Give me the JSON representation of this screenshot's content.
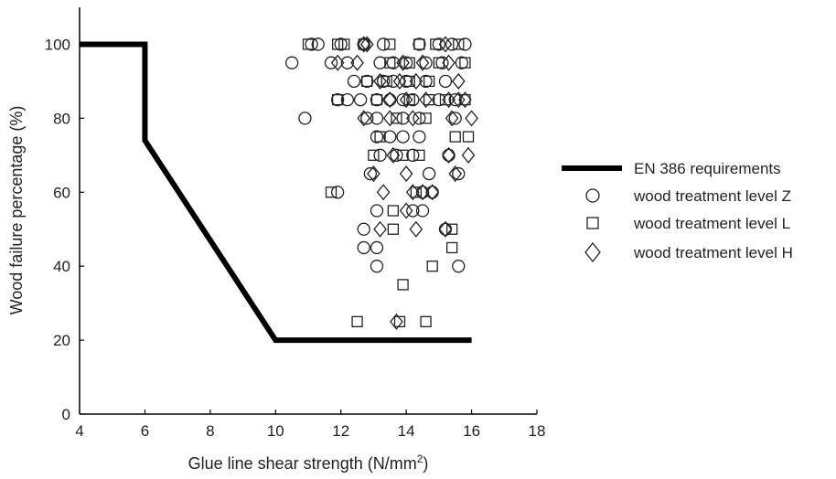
{
  "chart_data": {
    "type": "scatter",
    "xlabel": "Glue line shear strength (N/mm",
    "xlabel_sup": "2",
    "xlabel_end": ")",
    "ylabel": "Wood failure percentage (%)",
    "xlim": [
      4,
      18
    ],
    "ylim": [
      0,
      110
    ],
    "xticks": [
      4,
      6,
      8,
      10,
      12,
      14,
      16,
      18
    ],
    "yticks": [
      0,
      20,
      40,
      60,
      80,
      100
    ],
    "grid": false,
    "legend_position": "right",
    "requirement_line": {
      "name": "EN 386 requirements",
      "color": "#000000",
      "points": [
        [
          4,
          100
        ],
        [
          6,
          100
        ],
        [
          6,
          74
        ],
        [
          10,
          20
        ],
        [
          16,
          20
        ]
      ]
    },
    "series": [
      {
        "name": "wood treatment level Z",
        "marker": "circle",
        "color": "#222222",
        "points": [
          [
            11.1,
            100
          ],
          [
            11.3,
            100
          ],
          [
            12.0,
            100
          ],
          [
            12.7,
            100
          ],
          [
            13.3,
            100
          ],
          [
            14.4,
            100
          ],
          [
            15.0,
            100
          ],
          [
            15.4,
            100
          ],
          [
            15.8,
            100
          ],
          [
            10.5,
            95
          ],
          [
            11.7,
            95
          ],
          [
            12.2,
            95
          ],
          [
            13.2,
            95
          ],
          [
            13.6,
            95
          ],
          [
            14.0,
            95
          ],
          [
            14.6,
            95
          ],
          [
            15.1,
            95
          ],
          [
            15.7,
            95
          ],
          [
            12.4,
            90
          ],
          [
            12.8,
            90
          ],
          [
            13.3,
            90
          ],
          [
            13.6,
            90
          ],
          [
            14.0,
            90
          ],
          [
            14.6,
            90
          ],
          [
            15.2,
            90
          ],
          [
            11.9,
            85
          ],
          [
            12.2,
            85
          ],
          [
            12.6,
            85
          ],
          [
            13.1,
            85
          ],
          [
            13.5,
            85
          ],
          [
            13.9,
            85
          ],
          [
            14.2,
            85
          ],
          [
            15.0,
            85
          ],
          [
            15.5,
            85
          ],
          [
            10.9,
            80
          ],
          [
            12.8,
            80
          ],
          [
            13.1,
            80
          ],
          [
            13.9,
            80
          ],
          [
            14.4,
            80
          ],
          [
            15.5,
            80
          ],
          [
            13.1,
            75
          ],
          [
            13.5,
            75
          ],
          [
            13.9,
            75
          ],
          [
            14.4,
            75
          ],
          [
            13.2,
            70
          ],
          [
            13.7,
            70
          ],
          [
            14.2,
            70
          ],
          [
            15.3,
            70
          ],
          [
            12.9,
            65
          ],
          [
            14.7,
            65
          ],
          [
            15.6,
            65
          ],
          [
            11.9,
            60
          ],
          [
            14.5,
            60
          ],
          [
            14.8,
            60
          ],
          [
            13.1,
            55
          ],
          [
            14.2,
            55
          ],
          [
            14.5,
            55
          ],
          [
            12.7,
            50
          ],
          [
            15.2,
            50
          ],
          [
            12.7,
            45
          ],
          [
            13.1,
            45
          ],
          [
            13.1,
            40
          ],
          [
            15.6,
            40
          ]
        ]
      },
      {
        "name": "wood treatment level L",
        "marker": "square",
        "color": "#222222",
        "points": [
          [
            11.0,
            100
          ],
          [
            11.9,
            100
          ],
          [
            12.1,
            100
          ],
          [
            12.7,
            100
          ],
          [
            13.5,
            100
          ],
          [
            14.4,
            100
          ],
          [
            14.9,
            100
          ],
          [
            15.6,
            100
          ],
          [
            13.5,
            95
          ],
          [
            14.1,
            95
          ],
          [
            15.0,
            95
          ],
          [
            15.8,
            95
          ],
          [
            12.8,
            90
          ],
          [
            13.4,
            90
          ],
          [
            14.1,
            90
          ],
          [
            14.7,
            90
          ],
          [
            11.9,
            85
          ],
          [
            13.1,
            85
          ],
          [
            14.1,
            85
          ],
          [
            14.7,
            85
          ],
          [
            15.2,
            85
          ],
          [
            15.8,
            85
          ],
          [
            13.7,
            80
          ],
          [
            14.6,
            80
          ],
          [
            13.2,
            75
          ],
          [
            15.5,
            75
          ],
          [
            15.9,
            75
          ],
          [
            13.0,
            70
          ],
          [
            13.9,
            70
          ],
          [
            14.4,
            70
          ],
          [
            11.7,
            60
          ],
          [
            14.3,
            60
          ],
          [
            13.6,
            55
          ],
          [
            15.4,
            50
          ],
          [
            13.6,
            50
          ],
          [
            15.4,
            45
          ],
          [
            14.8,
            40
          ],
          [
            13.9,
            35
          ],
          [
            12.5,
            25
          ],
          [
            13.8,
            25
          ],
          [
            14.6,
            25
          ]
        ]
      },
      {
        "name": "wood treatment level H",
        "marker": "diamond",
        "color": "#222222",
        "points": [
          [
            12.7,
            100
          ],
          [
            12.8,
            100
          ],
          [
            15.2,
            100
          ],
          [
            11.9,
            95
          ],
          [
            12.5,
            95
          ],
          [
            13.9,
            95
          ],
          [
            14.5,
            95
          ],
          [
            15.3,
            95
          ],
          [
            13.2,
            90
          ],
          [
            13.8,
            90
          ],
          [
            14.3,
            90
          ],
          [
            15.6,
            90
          ],
          [
            13.5,
            85
          ],
          [
            14.0,
            85
          ],
          [
            14.6,
            85
          ],
          [
            15.3,
            85
          ],
          [
            15.6,
            85
          ],
          [
            15.8,
            85
          ],
          [
            12.7,
            80
          ],
          [
            13.5,
            80
          ],
          [
            14.2,
            80
          ],
          [
            15.4,
            80
          ],
          [
            16.0,
            80
          ],
          [
            13.6,
            70
          ],
          [
            15.3,
            70
          ],
          [
            15.9,
            70
          ],
          [
            13.0,
            65
          ],
          [
            14.0,
            65
          ],
          [
            15.5,
            65
          ],
          [
            13.3,
            60
          ],
          [
            14.2,
            60
          ],
          [
            14.5,
            60
          ],
          [
            14.8,
            60
          ],
          [
            14.0,
            55
          ],
          [
            13.2,
            50
          ],
          [
            14.3,
            50
          ],
          [
            15.2,
            50
          ],
          [
            13.7,
            25
          ]
        ]
      }
    ]
  }
}
